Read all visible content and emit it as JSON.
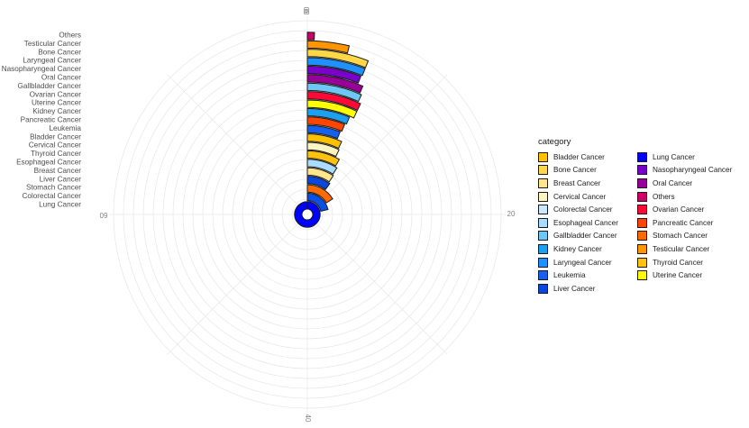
{
  "chart_data": {
    "type": "bar",
    "coord": "polar",
    "categories": [
      "Lung Cancer",
      "Colorectal Cancer",
      "Stomach Cancer",
      "Liver Cancer",
      "Breast Cancer",
      "Esophageal Cancer",
      "Thyroid Cancer",
      "Cervical Cancer",
      "Bladder Cancer",
      "Leukemia",
      "Pancreatic Cancer",
      "Kidney Cancer",
      "Uterine Cancer",
      "Ovarian Cancer",
      "Gallbladder Cancer",
      "Oral Cancer",
      "Nasopharyngeal Cancer",
      "Laryngeal Cancer",
      "Bone Cancer",
      "Testicular Cancer",
      "Others"
    ],
    "values": [
      80,
      17,
      13,
      8,
      7.5,
      7.2,
      6.7,
      5.8,
      5.6,
      4.8,
      5.0,
      5.2,
      5.7,
      5.7,
      5.4,
      5.2,
      4.7,
      4.8,
      4.8,
      3.1,
      0.5
    ],
    "fills": {
      "Lung Cancer": "#0000ff",
      "Colorectal Cancer": "#0a50e6",
      "Stomach Cancer": "#ff6a00",
      "Liver Cancer": "#0a47df",
      "Breast Cancer": "#ffe68c",
      "Esophageal Cancer": "#aadcff",
      "Thyroid Cancer": "#ffc20e",
      "Cervical Cancer": "#fff5c0",
      "Bladder Cancer": "#ffc000",
      "Leukemia": "#1560ef",
      "Pancreatic Cancer": "#ff4500",
      "Kidney Cancer": "#1ea0f0",
      "Uterine Cancer": "#ffff00",
      "Ovarian Cancer": "#ff0a37",
      "Gallbladder Cancer": "#6ec8f5",
      "Oral Cancer": "#990099",
      "Nasopharyngeal Cancer": "#7a00cc",
      "Laryngeal Cancer": "#1e90ff",
      "Bone Cancer": "#ffd84a",
      "Testicular Cancer": "#ff9500",
      "Others": "#cc0066",
      "Colorectal Cancer_legend": "#cce8ff"
    },
    "angle_axis": {
      "min": 0,
      "max": 80,
      "ticks": [
        "0",
        "20",
        "40",
        "60",
        "80"
      ]
    },
    "grid": true,
    "legend": {
      "title": "category",
      "position": "right",
      "items": [
        [
          "Bladder Cancer",
          "#ffc000"
        ],
        [
          "Bone Cancer",
          "#ffd84a"
        ],
        [
          "Breast Cancer",
          "#ffe68c"
        ],
        [
          "Cervical Cancer",
          "#fff5c0"
        ],
        [
          "Colorectal Cancer",
          "#cce8ff"
        ],
        [
          "Esophageal Cancer",
          "#aadcff"
        ],
        [
          "Gallbladder Cancer",
          "#6ec8f5"
        ],
        [
          "Kidney Cancer",
          "#1ea0f0"
        ],
        [
          "Laryngeal Cancer",
          "#1e90ff"
        ],
        [
          "Leukemia",
          "#1560ef"
        ],
        [
          "Liver Cancer",
          "#0a47df"
        ],
        [
          "Lung Cancer",
          "#0000ff"
        ],
        [
          "Nasopharyngeal Cancer",
          "#7a00cc"
        ],
        [
          "Oral Cancer",
          "#990099"
        ],
        [
          "Others",
          "#cc0066"
        ],
        [
          "Ovarian Cancer",
          "#ff0a37"
        ],
        [
          "Pancreatic Cancer",
          "#ff4500"
        ],
        [
          "Stomach Cancer",
          "#ff6a00"
        ],
        [
          "Testicular Cancer",
          "#ff9500"
        ],
        [
          "Thyroid Cancer",
          "#ffc20e"
        ],
        [
          "Uterine Cancer",
          "#ffff00"
        ]
      ]
    }
  }
}
